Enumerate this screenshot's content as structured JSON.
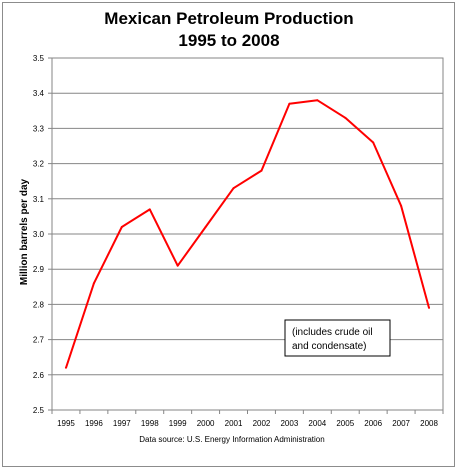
{
  "chart_data": {
    "type": "line",
    "title_line1": "Mexican Petroleum Production",
    "title_line2": "1995 to 2008",
    "xlabel": "",
    "ylabel": "Million barrels per day",
    "x": [
      "1995",
      "1996",
      "1997",
      "1998",
      "1999",
      "2000",
      "2001",
      "2002",
      "2003",
      "2004",
      "2005",
      "2006",
      "2007",
      "2008"
    ],
    "values": [
      2.62,
      2.86,
      3.02,
      3.07,
      2.91,
      3.02,
      3.13,
      3.18,
      3.37,
      3.38,
      3.33,
      3.26,
      3.08,
      2.79
    ],
    "ylim": [
      2.5,
      3.5
    ],
    "yticks": [
      "2.5",
      "2.6",
      "2.7",
      "2.8",
      "2.9",
      "3.0",
      "3.1",
      "3.2",
      "3.3",
      "3.4",
      "3.5"
    ],
    "grid": "horizontal",
    "line_color": "#ff0000",
    "annotation": [
      "(includes crude oil",
      "and condensate)"
    ],
    "source": "Data source: U.S. Energy Information Administration"
  }
}
